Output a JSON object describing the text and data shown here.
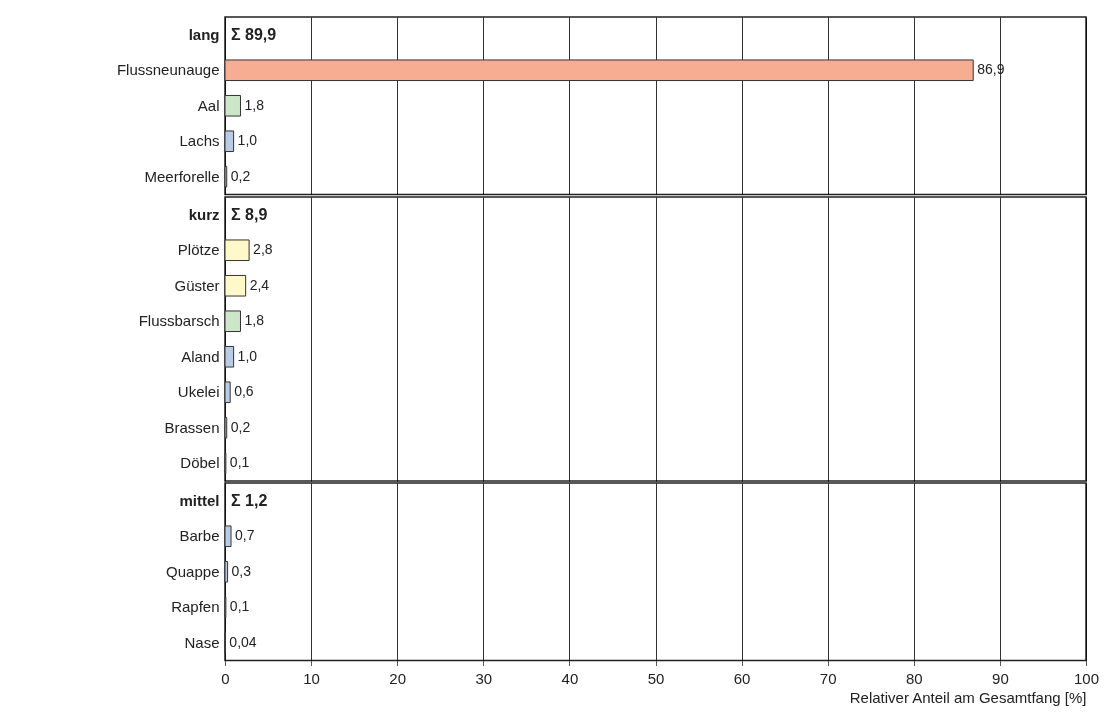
{
  "chart_data": [
    {
      "type": "bar",
      "orientation": "horizontal",
      "categories": [
        "lang",
        "Flussneunauge",
        "Aal",
        "Lachs",
        "Meerforelle"
      ],
      "values": [
        null,
        86.9,
        1.8,
        1.0,
        0.2
      ],
      "colors": [
        "#ffffff",
        "#f7ad92",
        "#cce6c8",
        "#b9cce6",
        "#b9cce6"
      ],
      "value_labels": [
        null,
        "86,9",
        "1,8",
        "1,0",
        "0,2"
      ],
      "annotations": [
        "Σ 89,9"
      ],
      "xlim": [
        0,
        100
      ],
      "xticks": [
        0,
        10,
        20,
        30,
        40,
        50,
        60,
        70,
        80,
        90,
        100
      ],
      "grid": "x",
      "tick_labels": "y"
    },
    {
      "type": "bar",
      "orientation": "horizontal",
      "categories": [
        "kurz",
        "Plötze",
        "Güster",
        "Flussbarsch",
        "Aland",
        "Ukelei",
        "Brassen",
        "Döbel"
      ],
      "values": [
        null,
        2.8,
        2.4,
        1.8,
        1.0,
        0.6,
        0.2,
        0.1
      ],
      "colors": [
        "#ffffff",
        "#fff8c8",
        "#fff8c8",
        "#cce6c8",
        "#b9cce6",
        "#b9cce6",
        "#b9cce6",
        "#b9cce6"
      ],
      "value_labels": [
        null,
        "2,8",
        "2,4",
        "1,8",
        "1,0",
        "0,6",
        "0,2",
        "0,1"
      ],
      "annotations": [
        "Σ 8,9"
      ],
      "xlim": [
        0,
        100
      ],
      "xticks": [
        0,
        10,
        20,
        30,
        40,
        50,
        60,
        70,
        80,
        90,
        100
      ],
      "grid": "x",
      "tick_labels": "y"
    },
    {
      "type": "bar",
      "orientation": "horizontal",
      "categories": [
        "mittel",
        "Barbe",
        "Quappe",
        "Rapfen",
        "Nase"
      ],
      "values": [
        null,
        0.7,
        0.3,
        0.1,
        0.04
      ],
      "colors": [
        "#ffffff",
        "#b9cce6",
        "#b9cce6",
        "#b9cce6",
        "#b9cce6"
      ],
      "value_labels": [
        null,
        "0,7",
        "0,3",
        "0,1",
        "0,04"
      ],
      "annotations": [
        "Σ 1,2"
      ],
      "xlim": [
        0,
        100
      ],
      "xticks": [
        0,
        10,
        20,
        30,
        40,
        50,
        60,
        70,
        80,
        90,
        100
      ],
      "grid": "x",
      "xlabel": "Relativer Anteil am Gesamtfang [%]"
    }
  ]
}
